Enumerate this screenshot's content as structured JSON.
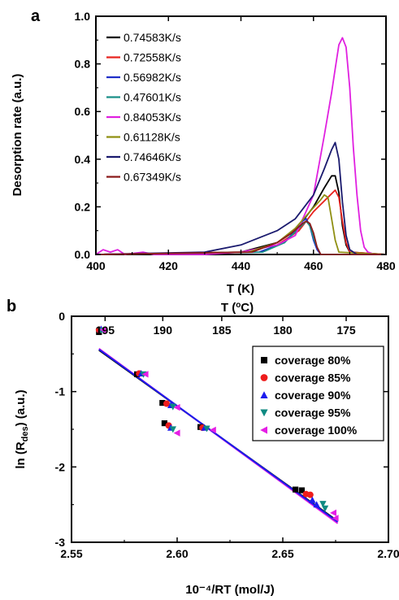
{
  "chart_data": [
    {
      "panel": "a",
      "type": "line",
      "xlabel": "T (K)",
      "ylabel": "Desorption rate (a.u.)",
      "xlim": [
        400,
        480
      ],
      "ylim": [
        0,
        1.0
      ],
      "xticks": [
        "400",
        "420",
        "440",
        "460",
        "480"
      ],
      "yticks": [
        "0.0",
        "0.2",
        "0.4",
        "0.6",
        "0.8",
        "1.0"
      ],
      "legend": "top-left",
      "series": [
        {
          "name": "0.74583K/s",
          "color": "#000000",
          "points": [
            [
              400,
              0
            ],
            [
              440,
              0.01
            ],
            [
              450,
              0.05
            ],
            [
              455,
              0.1
            ],
            [
              460,
              0.2
            ],
            [
              463,
              0.28
            ],
            [
              465,
              0.33
            ],
            [
              466,
              0.33
            ],
            [
              467,
              0.26
            ],
            [
              468,
              0.12
            ],
            [
              469,
              0.04
            ],
            [
              470,
              0.01
            ],
            [
              480,
              0
            ]
          ]
        },
        {
          "name": "0.72558K/s",
          "color": "#e8231f",
          "points": [
            [
              400,
              0
            ],
            [
              440,
              0.01
            ],
            [
              450,
              0.04
            ],
            [
              456,
              0.1
            ],
            [
              460,
              0.18
            ],
            [
              464,
              0.24
            ],
            [
              466,
              0.27
            ],
            [
              467,
              0.24
            ],
            [
              468,
              0.14
            ],
            [
              469,
              0.05
            ],
            [
              470,
              0.01
            ],
            [
              480,
              0
            ]
          ]
        },
        {
          "name": "0.56982K/s",
          "color": "#1f2fc8",
          "points": [
            [
              400,
              0
            ],
            [
              445,
              0.01
            ],
            [
              452,
              0.05
            ],
            [
              455,
              0.1
            ],
            [
              457,
              0.14
            ],
            [
              458,
              0.15
            ],
            [
              459,
              0.12
            ],
            [
              460,
              0.06
            ],
            [
              461,
              0.02
            ],
            [
              462,
              0
            ],
            [
              480,
              0
            ]
          ]
        },
        {
          "name": "0.47601K/s",
          "color": "#1a8f88",
          "points": [
            [
              400,
              0
            ],
            [
              446,
              0.01
            ],
            [
              452,
              0.05
            ],
            [
              456,
              0.11
            ],
            [
              458,
              0.14
            ],
            [
              459,
              0.12
            ],
            [
              460,
              0.07
            ],
            [
              461,
              0.03
            ],
            [
              462,
              0
            ],
            [
              480,
              0
            ]
          ]
        },
        {
          "name": "0.84053K/s",
          "color": "#e020e0",
          "points": [
            [
              400,
              0
            ],
            [
              402,
              0.02
            ],
            [
              404,
              0.01
            ],
            [
              406,
              0.02
            ],
            [
              408,
              0
            ],
            [
              413,
              0.01
            ],
            [
              416,
              0
            ],
            [
              430,
              0
            ],
            [
              440,
              0.01
            ],
            [
              450,
              0.04
            ],
            [
              455,
              0.08
            ],
            [
              460,
              0.25
            ],
            [
              463,
              0.5
            ],
            [
              465,
              0.68
            ],
            [
              466,
              0.78
            ],
            [
              467,
              0.88
            ],
            [
              468,
              0.91
            ],
            [
              469,
              0.87
            ],
            [
              470,
              0.7
            ],
            [
              471,
              0.45
            ],
            [
              472,
              0.25
            ],
            [
              473,
              0.1
            ],
            [
              474,
              0.03
            ],
            [
              475,
              0.01
            ],
            [
              477,
              0
            ],
            [
              480,
              0
            ]
          ]
        },
        {
          "name": "0.61128K/s",
          "color": "#8f8f12",
          "points": [
            [
              400,
              0
            ],
            [
              442,
              0.01
            ],
            [
              450,
              0.05
            ],
            [
              455,
              0.11
            ],
            [
              459,
              0.18
            ],
            [
              462,
              0.23
            ],
            [
              463,
              0.25
            ],
            [
              464,
              0.24
            ],
            [
              465,
              0.15
            ],
            [
              466,
              0.06
            ],
            [
              467,
              0.01
            ],
            [
              480,
              0
            ]
          ]
        },
        {
          "name": "0.74646K/s",
          "color": "#1a1a6e",
          "points": [
            [
              400,
              0
            ],
            [
              430,
              0.01
            ],
            [
              440,
              0.04
            ],
            [
              450,
              0.1
            ],
            [
              455,
              0.15
            ],
            [
              460,
              0.25
            ],
            [
              463,
              0.36
            ],
            [
              465,
              0.44
            ],
            [
              466,
              0.47
            ],
            [
              467,
              0.4
            ],
            [
              468,
              0.22
            ],
            [
              469,
              0.08
            ],
            [
              470,
              0.02
            ],
            [
              472,
              0
            ],
            [
              480,
              0
            ]
          ]
        },
        {
          "name": "0.67349K/s",
          "color": "#8b1a1a",
          "points": [
            [
              400,
              0
            ],
            [
              443,
              0.01
            ],
            [
              450,
              0.05
            ],
            [
              454,
              0.09
            ],
            [
              457,
              0.13
            ],
            [
              458,
              0.14
            ],
            [
              459,
              0.13
            ],
            [
              460,
              0.09
            ],
            [
              461,
              0.03
            ],
            [
              462,
              0
            ],
            [
              480,
              0
            ]
          ]
        }
      ]
    },
    {
      "panel": "b",
      "type": "scatter",
      "xlabel": "10⁻⁴/RT (mol/J)",
      "ylabel_main": "ln (R",
      "ylabel_sub": "des",
      "ylabel_end": ") (a.u.)",
      "top_xlabel_main": "T (",
      "top_xlabel_sup": "o",
      "top_xlabel_end": "C)",
      "xlim": [
        2.55,
        2.7
      ],
      "ylim": [
        -3,
        0
      ],
      "xticks": [
        "2.55",
        "2.60",
        "2.65",
        "2.70"
      ],
      "yticks": [
        "0",
        "-1",
        "-2",
        "-3"
      ],
      "top_ticks": [
        {
          "label": "195",
          "value": 2.5659
        },
        {
          "label": "190",
          "value": 2.5932
        },
        {
          "label": "185",
          "value": 2.6211
        },
        {
          "label": "180",
          "value": 2.65
        },
        {
          "label": "175",
          "value": 2.68
        }
      ],
      "legend": "top-right",
      "series": [
        {
          "name": "coverage 80%",
          "marker": "square",
          "color": "#000000",
          "points": [
            [
              2.563,
              -0.21
            ],
            [
              2.581,
              -0.77
            ],
            [
              2.593,
              -1.15
            ],
            [
              2.594,
              -1.42
            ],
            [
              2.611,
              -1.47
            ],
            [
              2.656,
              -2.3
            ],
            [
              2.659,
              -2.31
            ]
          ]
        },
        {
          "name": "coverage 85%",
          "marker": "circle",
          "color": "#ee1c1c",
          "points": [
            [
              2.563,
              -0.18
            ],
            [
              2.582,
              -0.76
            ],
            [
              2.595,
              -1.16
            ],
            [
              2.596,
              -1.45
            ],
            [
              2.612,
              -1.48
            ],
            [
              2.661,
              -2.36
            ],
            [
              2.663,
              -2.37
            ]
          ]
        },
        {
          "name": "coverage 90%",
          "marker": "triangle-up",
          "color": "#1c1cee",
          "points": [
            [
              2.564,
              -0.17
            ],
            [
              2.583,
              -0.76
            ],
            [
              2.597,
              -1.18
            ],
            [
              2.597,
              -1.48
            ],
            [
              2.613,
              -1.48
            ],
            [
              2.664,
              -2.44
            ],
            [
              2.666,
              -2.5
            ]
          ]
        },
        {
          "name": "coverage 95%",
          "marker": "triangle-down",
          "color": "#0f8a82",
          "points": [
            [
              2.564,
              -0.19
            ],
            [
              2.584,
              -0.77
            ],
            [
              2.598,
              -1.2
            ],
            [
              2.598,
              -1.5
            ],
            [
              2.614,
              -1.49
            ],
            [
              2.669,
              -2.49
            ],
            [
              2.67,
              -2.55
            ]
          ]
        },
        {
          "name": "coverage 100%",
          "marker": "triangle-left",
          "color": "#e51ee5",
          "points": [
            [
              2.565,
              -0.18
            ],
            [
              2.585,
              -0.77
            ],
            [
              2.6,
              -1.21
            ],
            [
              2.6,
              -1.55
            ],
            [
              2.617,
              -1.51
            ],
            [
              2.674,
              -2.61
            ],
            [
              2.675,
              -2.68
            ]
          ]
        }
      ],
      "fits": [
        {
          "color": "#000000",
          "x": [
            2.563,
            2.676
          ],
          "y": [
            -0.45,
            -2.72
          ]
        },
        {
          "color": "#e51ee5",
          "x": [
            2.563,
            2.676
          ],
          "y": [
            -0.43,
            -2.75
          ]
        },
        {
          "color": "#1c1cee",
          "x": [
            2.563,
            2.676
          ],
          "y": [
            -0.44,
            -2.73
          ]
        }
      ]
    }
  ]
}
